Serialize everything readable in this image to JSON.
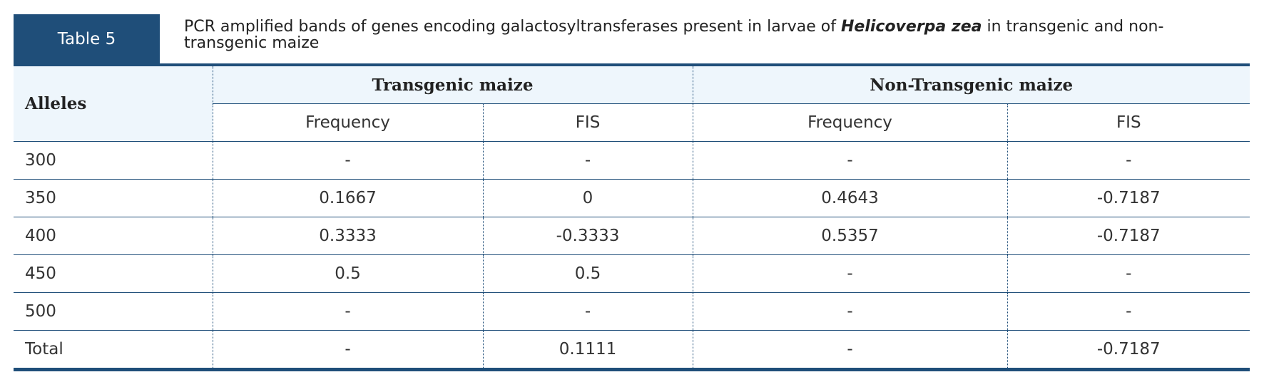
{
  "label": "Table 5",
  "caption": [
    "PCR amplified bands of genes encoding galactosyltransferases present in larvae of ",
    "Helicoverpa zea",
    " in transgenic and non-transgenic maize"
  ],
  "table": {
    "header": {
      "alleles": "Alleles",
      "groups": [
        "Transgenic maize",
        "Non-Transgenic maize"
      ],
      "columns": [
        "Frequency",
        "FIS",
        "Frequency",
        "FIS"
      ]
    },
    "rows": [
      [
        "300",
        "-",
        "-",
        "-",
        "-"
      ],
      [
        "350",
        "0.1667",
        "0",
        "0.4643",
        "-0.7187"
      ],
      [
        "400",
        "0.3333",
        "-0.3333",
        "0.5357",
        "-0.7187"
      ],
      [
        "450",
        "0.5",
        "0.5",
        "-",
        "-"
      ],
      [
        "500",
        "-",
        "-",
        "-",
        "-"
      ],
      [
        "Total",
        "-",
        "0.1111",
        "-",
        "-0.7187"
      ]
    ]
  }
}
